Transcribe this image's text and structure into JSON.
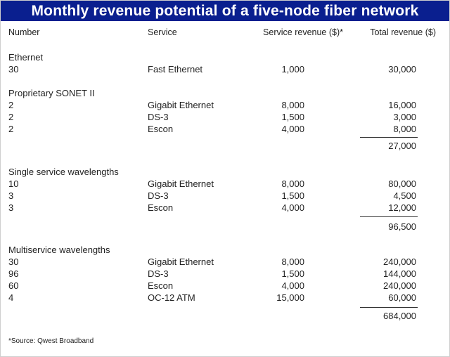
{
  "title": "Monthly revenue potential of a five-node fiber network",
  "headers": {
    "number": "Number",
    "service": "Service",
    "service_revenue": "Service revenue ($)*",
    "total_revenue": "Total revenue ($)"
  },
  "sections": [
    {
      "name": "Ethernet",
      "rows": [
        {
          "number": "30",
          "service": "Fast Ethernet",
          "service_revenue": "1,000",
          "total_revenue": "30,000"
        }
      ],
      "subtotal": ""
    },
    {
      "name": "Proprietary SONET II",
      "rows": [
        {
          "number": "2",
          "service": "Gigabit Ethernet",
          "service_revenue": "8,000",
          "total_revenue": "16,000"
        },
        {
          "number": "2",
          "service": "DS-3",
          "service_revenue": "1,500",
          "total_revenue": "3,000"
        },
        {
          "number": "2",
          "service": "Escon",
          "service_revenue": "4,000",
          "total_revenue": "8,000"
        }
      ],
      "subtotal": "27,000"
    },
    {
      "name": "Single service wavelengths",
      "rows": [
        {
          "number": "10",
          "service": "Gigabit Ethernet",
          "service_revenue": "8,000",
          "total_revenue": "80,000"
        },
        {
          "number": "3",
          "service": "DS-3",
          "service_revenue": "1,500",
          "total_revenue": "4,500"
        },
        {
          "number": "3",
          "service": "Escon",
          "service_revenue": "4,000",
          "total_revenue": "12,000"
        }
      ],
      "subtotal": "96,500"
    },
    {
      "name": "Multiservice wavelengths",
      "rows": [
        {
          "number": "30",
          "service": "Gigabit Ethernet",
          "service_revenue": "8,000",
          "total_revenue": "240,000"
        },
        {
          "number": "96",
          "service": "DS-3",
          "service_revenue": "1,500",
          "total_revenue": "144,000"
        },
        {
          "number": "60",
          "service": "Escon",
          "service_revenue": "4,000",
          "total_revenue": "240,000"
        },
        {
          "number": "4",
          "service": "OC-12 ATM",
          "service_revenue": "15,000",
          "total_revenue": "60,000"
        }
      ],
      "subtotal": "684,000"
    }
  ],
  "source": "*Source: Qwest Broadband"
}
